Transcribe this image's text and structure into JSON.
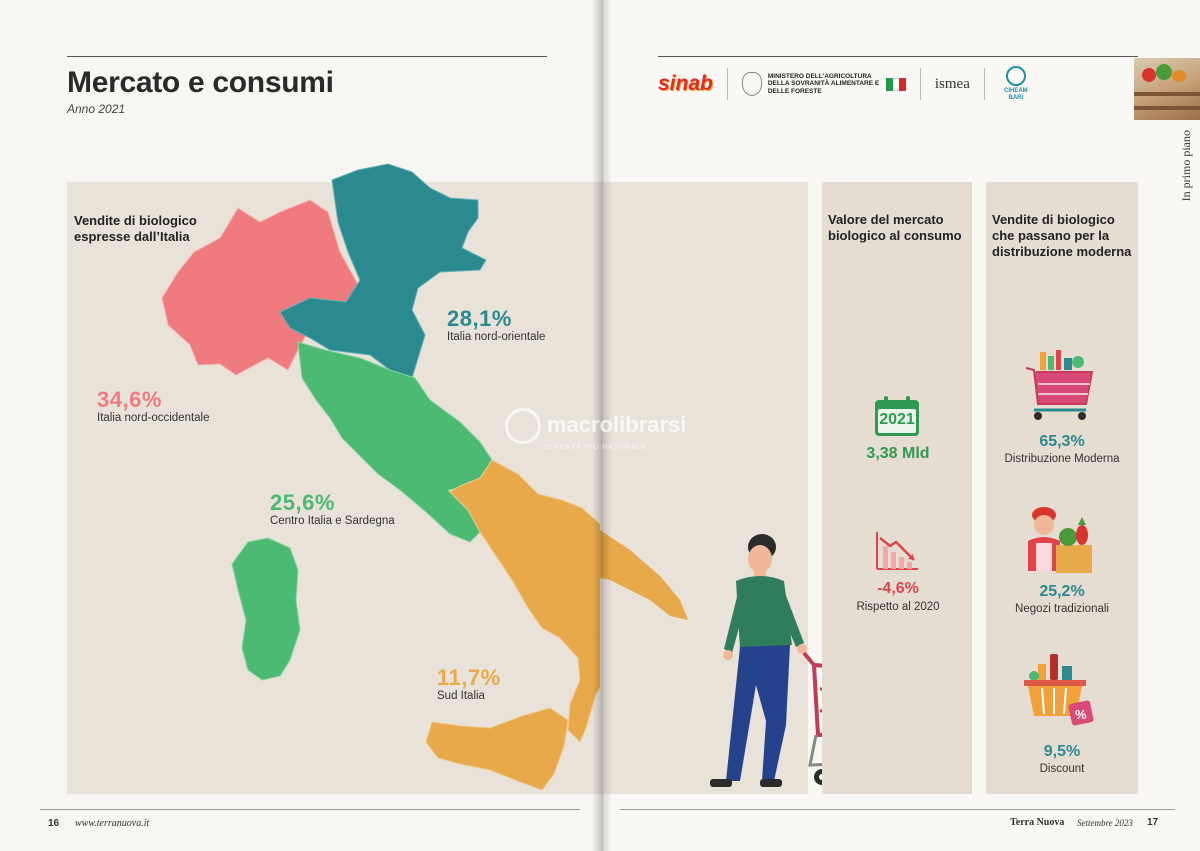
{
  "left_page": {
    "title": "Mercato e consumi",
    "subtitle": "Anno 2021",
    "map_heading": "Vendite di biologico espresse dall’Italia",
    "regions": [
      {
        "value": "28,1%",
        "label": "Italia nord-orientale",
        "color": "#2b8a8f"
      },
      {
        "value": "34,6%",
        "label": "Italia nord-occidentale",
        "color": "#f07b7f"
      },
      {
        "value": "25,6%",
        "label": "Centro Italia e Sardegna",
        "color": "#4cba72"
      },
      {
        "value": "11,7%",
        "label": "Sud Italia",
        "color": "#e8a94b"
      }
    ],
    "page_number": "16",
    "website": "www.terranuova.it"
  },
  "right_page": {
    "logos": [
      "sinab",
      "MINISTERO DELL’AGRICOLTURA DELLA SOVRANITÀ ALIMENTARE E DELLE FORESTE",
      "ismea",
      "CIHEAM BARI"
    ],
    "side_tab": "In primo piano",
    "market_panel": {
      "heading": "Valore del mercato biologico al consumo",
      "year": "2021",
      "value": "3,38 Mld",
      "change": "-4,6%",
      "change_label": "Rispetto al 2020",
      "value_color": "#2e9a4f",
      "change_color": "#e0444a"
    },
    "distribution_panel": {
      "heading": "Vendite di biologico che passano per la distribuzione moderna",
      "items": [
        {
          "value": "65,3%",
          "label": "Distribuzione Moderna",
          "icon": "shopping-cart-icon"
        },
        {
          "value": "25,2%",
          "label": "Negozi tradizionali",
          "icon": "grocer-icon"
        },
        {
          "value": "9,5%",
          "label": "Discount",
          "icon": "discount-basket-icon"
        }
      ],
      "value_color": "#2b8a8f"
    },
    "footer_magazine": "Terra Nuova",
    "footer_issue": "Settembre 2023",
    "page_number": "17"
  },
  "watermark": {
    "text": "macrolibrarsi",
    "sub": "DIVENTA PIÙ NATURALE"
  }
}
